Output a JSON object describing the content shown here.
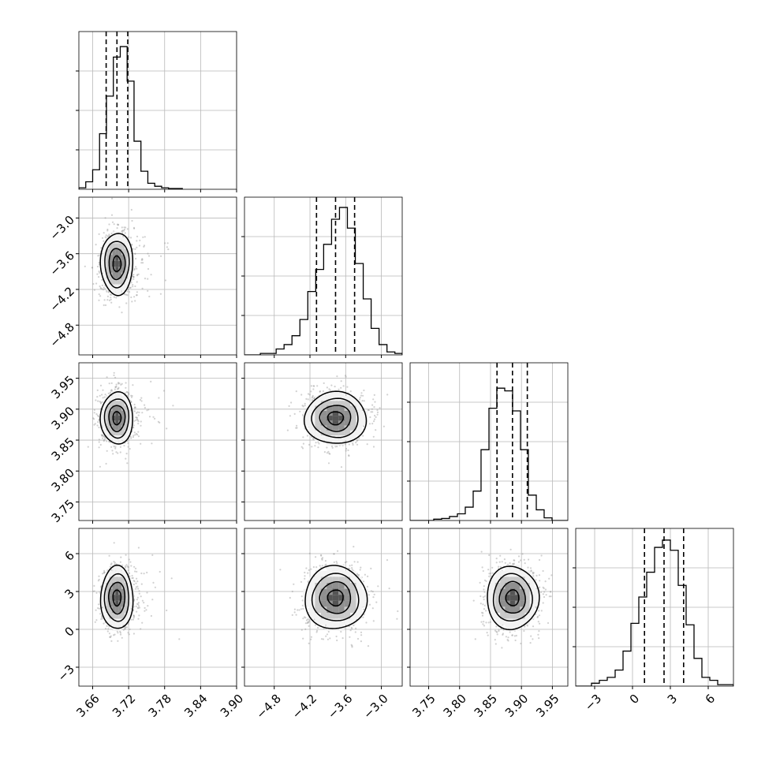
{
  "chart_data": {
    "type": "corner",
    "parameters": [
      {
        "xlim": [
          3.637,
          3.9
        ],
        "ylim": [
          3.72,
          3.975
        ],
        "ticks": [
          3.66,
          3.72,
          3.78,
          3.84,
          3.9
        ],
        "tick_labels": [
          "3.66",
          "3.72",
          "3.78",
          "3.84",
          "3.90"
        ],
        "hist": {
          "bin_edges": [
            3.637,
            3.6485,
            3.66,
            3.6715,
            3.683,
            3.6945,
            3.706,
            3.7175,
            3.729,
            3.7405,
            3.752,
            3.7635,
            3.775,
            3.7865,
            3.798,
            3.8095
          ],
          "counts": [
            0.01,
            0.05,
            0.13,
            0.37,
            0.62,
            0.88,
            0.95,
            0.72,
            0.32,
            0.12,
            0.04,
            0.02,
            0.01,
            0.005,
            0.005
          ],
          "ymax": 1.05,
          "quantiles": [
            3.6825,
            3.7005,
            3.7185
          ]
        }
      },
      {
        "xlim": [
          -5.3,
          -2.65
        ],
        "ylim": [
          -5.3,
          -2.65
        ],
        "ticks": [
          -4.8,
          -4.2,
          -3.6,
          -3.0
        ],
        "tick_labels": [
          "−4.8",
          "−4.2",
          "−3.6",
          "−3.0"
        ],
        "hist": {
          "bin_edges": [
            -5.3,
            -5.167,
            -5.034,
            -4.901,
            -4.768,
            -4.635,
            -4.502,
            -4.369,
            -4.236,
            -4.103,
            -3.97,
            -3.837,
            -3.704,
            -3.571,
            -3.438,
            -3.305,
            -3.172,
            -3.039,
            -2.906,
            -2.773,
            -2.65
          ],
          "counts": [
            0,
            0,
            0.01,
            0.01,
            0.04,
            0.07,
            0.13,
            0.24,
            0.43,
            0.58,
            0.75,
            0.92,
            1.0,
            0.86,
            0.62,
            0.38,
            0.18,
            0.07,
            0.02,
            0.01
          ],
          "ymax": 1.07,
          "quantiles": [
            -4.09,
            -3.77,
            -3.45
          ]
        }
      },
      {
        "xlim": [
          3.72,
          3.975
        ],
        "ylim": [
          3.72,
          3.975
        ],
        "ticks": [
          3.75,
          3.8,
          3.85,
          3.9,
          3.95
        ],
        "tick_labels": [
          "3.75",
          "3.80",
          "3.85",
          "3.90",
          "3.95"
        ],
        "hist": {
          "bin_edges": [
            3.72,
            3.7327,
            3.7455,
            3.7582,
            3.771,
            3.7837,
            3.7965,
            3.8092,
            3.822,
            3.8347,
            3.8475,
            3.8602,
            3.873,
            3.8857,
            3.8985,
            3.9112,
            3.924,
            3.9367,
            3.9495,
            3.9622,
            3.975
          ],
          "counts": [
            0,
            0,
            0,
            0.01,
            0.015,
            0.03,
            0.05,
            0.1,
            0.22,
            0.53,
            0.84,
            0.99,
            0.97,
            0.82,
            0.53,
            0.19,
            0.08,
            0.02,
            0,
            0
          ],
          "ymax": 1.18,
          "quantiles": [
            3.8605,
            3.8855,
            3.9095
          ]
        }
      },
      {
        "xlim": [
          -4.5,
          8.0
        ],
        "ylim": [
          -4.5,
          8.0
        ],
        "ticks": [
          -3,
          0,
          3,
          6
        ],
        "tick_labels": [
          "−3",
          "0",
          "3",
          "6"
        ],
        "hist": {
          "bin_edges": [
            -4.5,
            -3.875,
            -3.25,
            -2.625,
            -2.0,
            -1.375,
            -0.75,
            -0.125,
            0.5,
            1.125,
            1.75,
            2.375,
            3.0,
            3.625,
            4.25,
            4.875,
            5.5,
            6.125,
            6.75,
            7.375,
            8.0
          ],
          "counts": [
            0,
            0,
            0.02,
            0.04,
            0.06,
            0.11,
            0.24,
            0.43,
            0.61,
            0.78,
            0.95,
            1.0,
            0.93,
            0.69,
            0.42,
            0.19,
            0.06,
            0.04,
            0.01,
            0.01
          ],
          "ymax": 1.08,
          "quantiles": [
            0.95,
            2.5,
            4.05
          ]
        }
      }
    ],
    "means": [
      3.7005,
      -3.77,
      3.8855,
      2.5
    ],
    "sigmas": [
      0.0135,
      0.26,
      0.021,
      1.25
    ],
    "grid": true,
    "contour_levels_sigma": [
      0.5,
      1.0,
      1.5,
      2.0
    ],
    "points_color": "#9a9a9a",
    "line_color": "#000000"
  }
}
